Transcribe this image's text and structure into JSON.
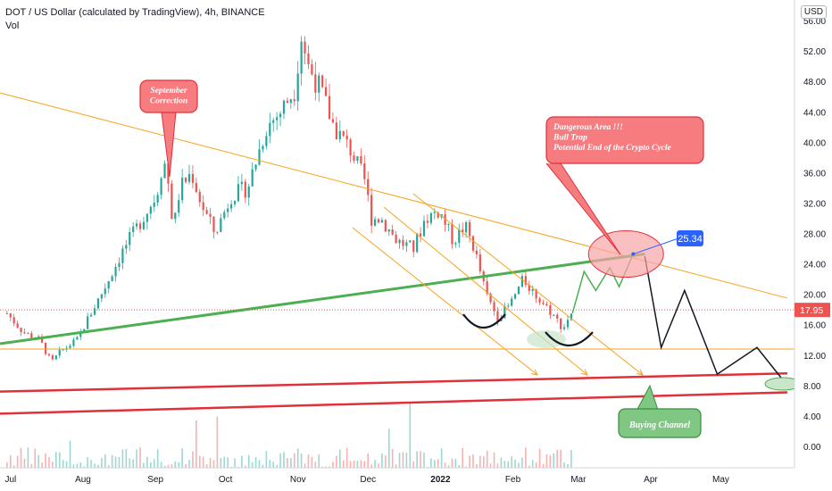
{
  "header": {
    "title": "DOT / US Dollar (calculated by TradingView), 4h, BINANCE",
    "volume_label": "Vol",
    "currency": "USD"
  },
  "chart_data": {
    "type": "candlestick",
    "title": "DOT / US Dollar (calculated by TradingView), 4h, BINANCE",
    "x_ticks": [
      "Jul",
      "Aug",
      "Sep",
      "Oct",
      "Nov",
      "Dec",
      "2022",
      "Feb",
      "Mar",
      "Apr",
      "May"
    ],
    "y_ticks": [
      0,
      4,
      8,
      12,
      16,
      20,
      24,
      28,
      32,
      36,
      40,
      44,
      48,
      52,
      56
    ],
    "y_tick_labels": [
      "0.00",
      "4.00",
      "8.00",
      "12.00",
      "16.00",
      "20.00",
      "24.00",
      "28.00",
      "32.00",
      "36.00",
      "40.00",
      "44.00",
      "48.00",
      "52.00",
      "56.00"
    ],
    "ylim": [
      -1.5,
      57.5
    ],
    "last_price": "17.95",
    "target_label": "25.34",
    "price_path": [
      [
        "2021-07-01",
        17.5
      ],
      [
        "2021-07-08",
        15
      ],
      [
        "2021-07-15",
        14
      ],
      [
        "2021-07-20",
        11
      ],
      [
        "2021-07-24",
        12.5
      ],
      [
        "2021-07-31",
        14
      ],
      [
        "2021-08-05",
        17
      ],
      [
        "2021-08-12",
        21
      ],
      [
        "2021-08-20",
        26
      ],
      [
        "2021-08-28",
        30
      ],
      [
        "2021-09-03",
        33
      ],
      [
        "2021-09-06",
        38
      ],
      [
        "2021-09-09",
        33
      ],
      [
        "2021-09-10",
        28
      ],
      [
        "2021-09-13",
        34
      ],
      [
        "2021-09-18",
        36
      ],
      [
        "2021-09-22",
        32
      ],
      [
        "2021-09-28",
        28
      ],
      [
        "2021-10-05",
        33
      ],
      [
        "2021-10-12",
        34
      ],
      [
        "2021-10-20",
        42
      ],
      [
        "2021-10-26",
        44
      ],
      [
        "2021-11-01",
        47
      ],
      [
        "2021-11-04",
        54
      ],
      [
        "2021-11-07",
        50
      ],
      [
        "2021-11-12",
        47
      ],
      [
        "2021-11-18",
        42
      ],
      [
        "2021-11-25",
        39
      ],
      [
        "2021-12-01",
        35
      ],
      [
        "2021-12-04",
        30
      ],
      [
        "2021-12-08",
        30
      ],
      [
        "2021-12-15",
        27
      ],
      [
        "2021-12-22",
        26
      ],
      [
        "2021-12-27",
        30
      ],
      [
        "2022-01-02",
        31
      ],
      [
        "2022-01-08",
        27
      ],
      [
        "2022-01-13",
        29
      ],
      [
        "2022-01-17",
        26
      ],
      [
        "2022-01-22",
        20
      ],
      [
        "2022-01-27",
        17
      ],
      [
        "2022-02-01",
        18.5
      ],
      [
        "2022-02-07",
        22
      ],
      [
        "2022-02-12",
        20
      ],
      [
        "2022-02-18",
        18
      ],
      [
        "2022-02-24",
        15.5
      ],
      [
        "2022-02-28",
        17.95
      ]
    ],
    "annotations": {
      "september_callout": "September\nCorrection",
      "danger_callout": "Dangerous Area !!!\nBull Trap\nPotential End of the Crypto Cycle",
      "buying_callout": "Buying Channel"
    },
    "trendlines": {
      "descending_resistance": [
        [
          "2021-06-28",
          46.5
        ],
        [
          "2022-05-31",
          19.5
        ]
      ],
      "ascending_support": [
        [
          "2021-06-28",
          13.5
        ],
        [
          "2022-03-31",
          25.3
        ]
      ],
      "horizontal_support": 12.8,
      "buying_channel_top": [
        [
          "2021-06-28",
          7.2
        ],
        [
          "2022-05-31",
          9.6
        ]
      ],
      "buying_channel_bottom": [
        [
          "2021-06-28",
          4.3
        ],
        [
          "2022-05-31",
          7.1
        ]
      ],
      "last_price_line": 17.95
    },
    "projection_bull": [
      [
        "2022-02-28",
        17.5
      ],
      [
        "2022-03-05",
        23
      ],
      [
        "2022-03-10",
        20.5
      ],
      [
        "2022-03-16",
        23.5
      ],
      [
        "2022-03-20",
        21
      ],
      [
        "2022-03-26",
        25.3
      ]
    ],
    "projection_bear": [
      [
        "2022-03-31",
        25
      ],
      [
        "2022-04-07",
        13
      ],
      [
        "2022-04-17",
        20.5
      ],
      [
        "2022-05-01",
        9.5
      ],
      [
        "2022-05-18",
        13
      ],
      [
        "2022-05-31",
        8
      ]
    ],
    "colors": {
      "up": "#26a69a",
      "down": "#ef5350",
      "orange": "#f7a21b",
      "green": "#4caf50",
      "red": "#e0313b",
      "callout_red": "#f77c80",
      "callout_green": "#81c784",
      "blue": "#2962ff"
    },
    "grid": false,
    "legend": "none"
  }
}
